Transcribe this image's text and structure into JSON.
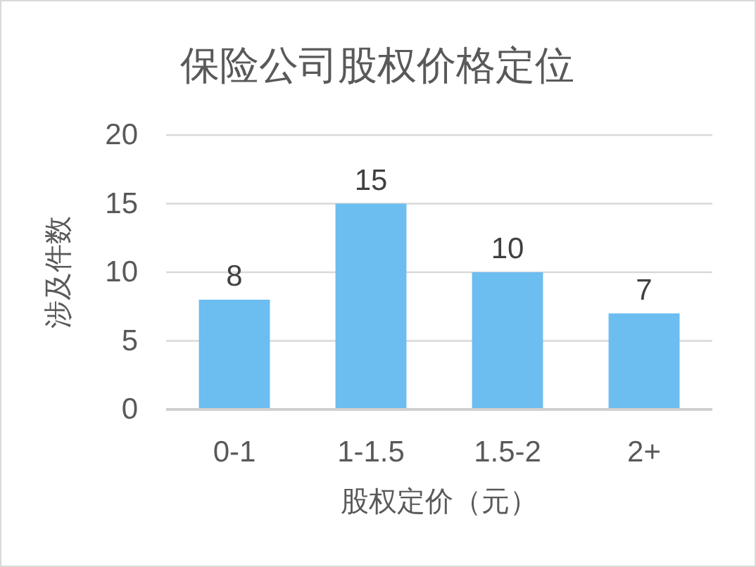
{
  "chart_data": {
    "type": "bar",
    "title": "保险公司股权价格定位",
    "xlabel": "股权定价（元）",
    "ylabel": "涉及件数",
    "categories": [
      "0-1",
      "1-1.5",
      "1.5-2",
      "2+"
    ],
    "values": [
      8,
      15,
      10,
      7
    ],
    "color": "#6cbdf0",
    "ylim": [
      0,
      20
    ],
    "yticks": [
      0,
      5,
      10,
      15,
      20
    ],
    "grid": "y",
    "data_labels": true
  }
}
